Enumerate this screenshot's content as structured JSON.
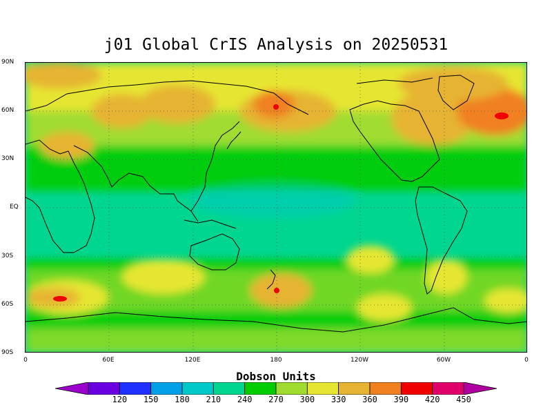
{
  "title": "j01 Global CrIS Analysis on 20250531",
  "colorbar": {
    "title": "Dobson Units",
    "ticks": [
      "120",
      "150",
      "180",
      "210",
      "240",
      "270",
      "300",
      "330",
      "360",
      "390",
      "420",
      "450"
    ],
    "colors": [
      "#9b00cc",
      "#6a00e0",
      "#2030ff",
      "#00a0e8",
      "#00c8c8",
      "#00d690",
      "#00cc00",
      "#a0dc30",
      "#e6e632",
      "#e6b432",
      "#f08020",
      "#f00000",
      "#e0006a",
      "#b000a0"
    ]
  },
  "map": {
    "lat_labels": [
      "90N",
      "60N",
      "30N",
      "EQ",
      "30S",
      "60S",
      "90S"
    ],
    "lon_labels": [
      "0",
      "60E",
      "120E",
      "180",
      "120W",
      "60W",
      "0"
    ],
    "lon_range": [
      0,
      360
    ],
    "lat_range": [
      -90,
      90
    ],
    "grid": "dotted",
    "background_color": "#00d690"
  }
}
